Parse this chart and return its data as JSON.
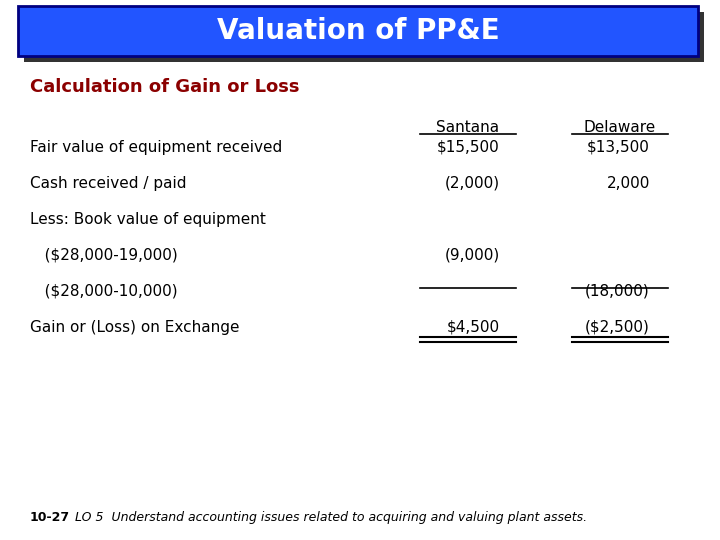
{
  "title": "Valuation of PP&E",
  "title_bg": "#2255ff",
  "title_color": "#ffffff",
  "subtitle": "Calculation of Gain or Loss",
  "subtitle_color": "#8b0000",
  "col_headers": [
    "Santana",
    "Delaware"
  ],
  "rows": [
    {
      "label": "Fair value of equipment received",
      "indent": 0,
      "santana": "$15,500",
      "delaware": "$13,500"
    },
    {
      "label": "Cash received / paid",
      "indent": 0,
      "santana": "(2,000)",
      "delaware": "2,000"
    },
    {
      "label": "Less: Book value of equipment",
      "indent": 0,
      "santana": "",
      "delaware": ""
    },
    {
      "label": "   ($28,000-19,000)",
      "indent": 0,
      "santana": "(9,000)",
      "delaware": ""
    },
    {
      "label": "   ($28,000-10,000)",
      "indent": 0,
      "santana": "",
      "delaware": "(18,000)"
    },
    {
      "label": "Gain or (Loss) on Exchange",
      "indent": 0,
      "santana": "$4,500",
      "delaware": "($2,500)"
    }
  ],
  "footer_left": "10-27",
  "footer_right": "LO 5  Understand accounting issues related to acquiring and valuing plant assets.",
  "bg_color": "#ffffff",
  "text_color": "#000000"
}
